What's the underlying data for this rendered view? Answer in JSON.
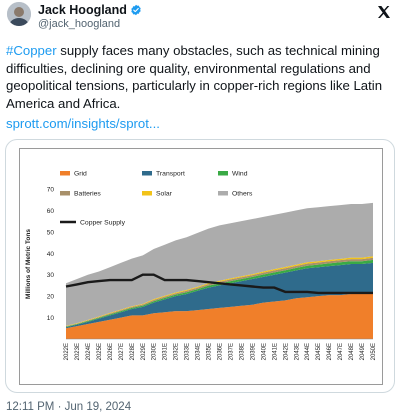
{
  "author": {
    "display_name": "Jack Hoogland",
    "handle": "@jack_hoogland"
  },
  "post": {
    "hashtag": "#Copper",
    "text": " supply faces many obstacles, such as technical mining difficulties, declining ore quality, environmental regulations and geopolitical tensions, particularly in copper-rich regions like Latin America and Africa.",
    "link": "sprott.com/insights/sprot...",
    "timestamp": "12:11 PM · Jun 19, 2024"
  },
  "icons": {
    "verified": "verified-badge-icon",
    "x_logo": "x-logo-icon",
    "avatar": "avatar"
  },
  "chart_data": {
    "type": "area",
    "title": "",
    "xlabel": "",
    "ylabel": "Millions of Metric Tons",
    "ylim": [
      0,
      70
    ],
    "yticks": [
      10,
      20,
      30,
      40,
      50,
      60,
      70
    ],
    "grid": false,
    "legend_position": "top",
    "x": [
      "2022E",
      "2023E",
      "2024E",
      "2025E",
      "2026E",
      "2027E",
      "2028E",
      "2029E",
      "2030E",
      "2031E",
      "2032E",
      "2033E",
      "2034E",
      "2035E",
      "2036E",
      "2037E",
      "2038E",
      "2039E",
      "2040E",
      "2041E",
      "2042E",
      "2043E",
      "2044E",
      "2045E",
      "2046E",
      "2047E",
      "2048E",
      "2049E",
      "2050E"
    ],
    "series": [
      {
        "name": "Grid",
        "kind": "stack",
        "color": "#f07f2a",
        "values": [
          5,
          6,
          7,
          8,
          9,
          10,
          11,
          11,
          12,
          12.5,
          13,
          13,
          13.5,
          14,
          14.5,
          15,
          15.5,
          16,
          17,
          17.5,
          18,
          19,
          19.5,
          20,
          20.5,
          20.5,
          21,
          21,
          21.5
        ]
      },
      {
        "name": "Transport",
        "kind": "stack",
        "color": "#2f6b8c",
        "values": [
          0.5,
          0.7,
          1,
          1.5,
          2,
          2.5,
          3,
          4,
          5,
          6,
          7,
          8,
          9,
          10,
          10.5,
          11,
          11.5,
          12,
          12,
          12.5,
          13,
          13,
          13.5,
          13.5,
          13.5,
          14,
          14,
          14,
          14
        ]
      },
      {
        "name": "Wind",
        "kind": "stack",
        "color": "#3aaa45",
        "values": [
          0.3,
          0.3,
          0.4,
          0.4,
          0.5,
          0.5,
          0.5,
          0.6,
          0.6,
          0.7,
          0.7,
          0.8,
          0.8,
          0.9,
          0.9,
          1,
          1,
          1,
          1.1,
          1.1,
          1.1,
          1.2,
          1.2,
          1.2,
          1.3,
          1.3,
          1.3,
          1.3,
          1.4
        ]
      },
      {
        "name": "Batteries",
        "kind": "stack",
        "color": "#a8906a",
        "values": [
          0.2,
          0.2,
          0.3,
          0.3,
          0.4,
          0.4,
          0.5,
          0.5,
          0.6,
          0.6,
          0.6,
          0.7,
          0.7,
          0.7,
          0.8,
          0.8,
          0.8,
          0.8,
          0.9,
          0.9,
          0.9,
          0.9,
          1,
          1,
          1,
          1,
          1,
          1,
          1
        ]
      },
      {
        "name": "Solar",
        "kind": "stack",
        "color": "#f2c318",
        "values": [
          0.2,
          0.2,
          0.2,
          0.3,
          0.3,
          0.3,
          0.3,
          0.3,
          0.4,
          0.4,
          0.4,
          0.4,
          0.4,
          0.5,
          0.5,
          0.5,
          0.5,
          0.5,
          0.5,
          0.6,
          0.6,
          0.6,
          0.6,
          0.6,
          0.6,
          0.6,
          0.7,
          0.7,
          0.7
        ]
      },
      {
        "name": "Others",
        "kind": "stack",
        "color": "#acacac",
        "values": [
          19.8,
          20.6,
          21.1,
          21,
          21.3,
          21.8,
          22.2,
          22.6,
          23.4,
          23.8,
          24.3,
          24.6,
          25.1,
          25.4,
          25.8,
          25.7,
          25.7,
          25.7,
          25.5,
          25.4,
          25.4,
          25.3,
          25.2,
          25.2,
          25.1,
          25.1,
          25,
          25,
          24.9
        ]
      },
      {
        "name": "Copper Supply",
        "kind": "line",
        "color": "#1a1a1a",
        "values": [
          24.5,
          25.5,
          26.5,
          27,
          27.5,
          27.5,
          27.5,
          30,
          30,
          27.5,
          27.5,
          27.5,
          27,
          26.5,
          26,
          25.5,
          25,
          24.5,
          24,
          24,
          22,
          22,
          22,
          21.5,
          21.5,
          21.5,
          21.5,
          21.5,
          21.5
        ]
      }
    ]
  }
}
